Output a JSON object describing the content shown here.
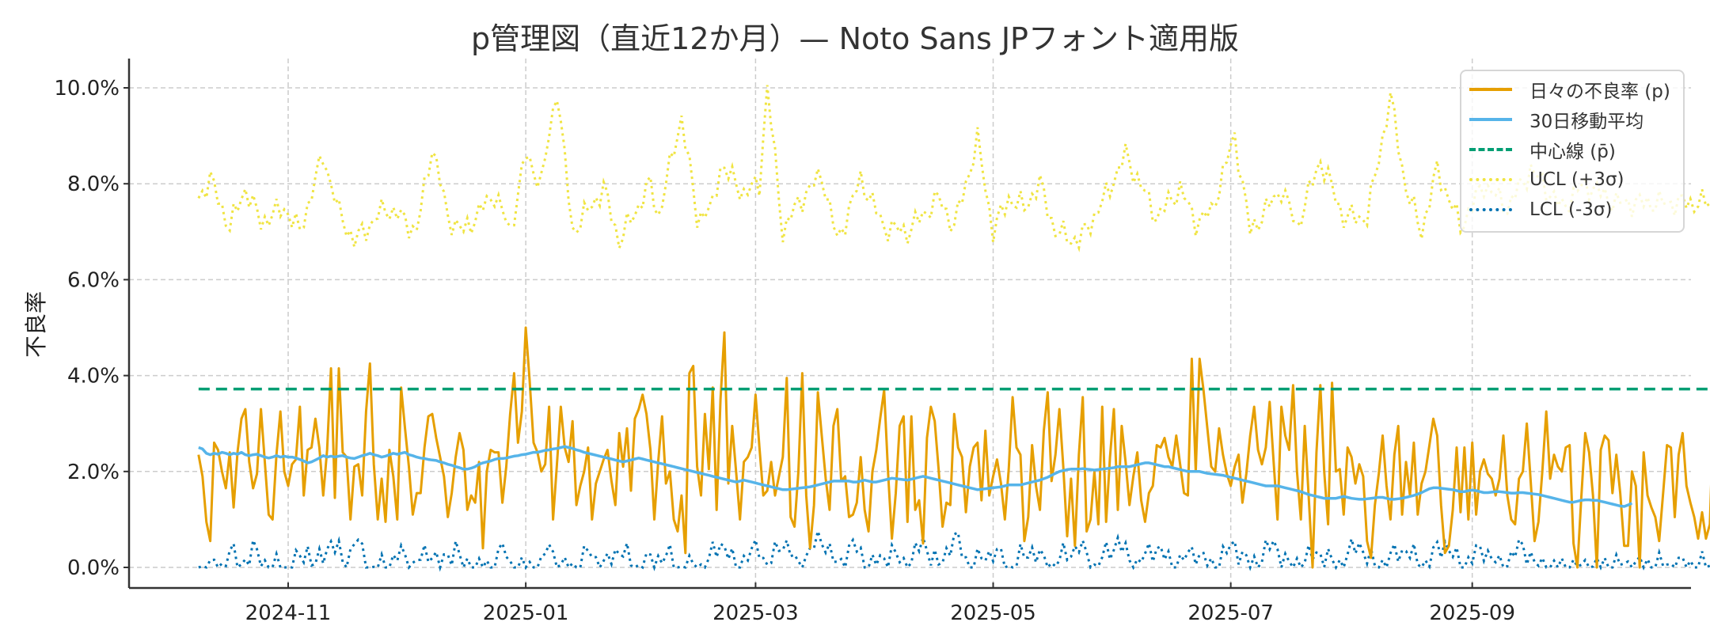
{
  "chart_data": {
    "type": "line",
    "title": "p管理図（直近12か月）— Noto Sans JPフォント適用版",
    "xlabel": "",
    "ylabel": "不良率",
    "x_start": "2024-10-09",
    "x_end": "2025-10-08",
    "x_ticks": [
      "2024-11",
      "2025-01",
      "2025-03",
      "2025-05",
      "2025-07",
      "2025-09"
    ],
    "y_ticks": [
      "0.0%",
      "2.0%",
      "4.0%",
      "6.0%",
      "8.0%",
      "10.0%"
    ],
    "ylim": [
      -0.5,
      10.6
    ],
    "y_unit": "%",
    "grid": true,
    "legend_position": "upper right",
    "center_line": 3.72,
    "series": [
      {
        "name": "日々の不良率 (p)",
        "color": "#E69F00",
        "style": "solid",
        "key": "daily"
      },
      {
        "name": "30日移動平均",
        "color": "#56B4E9",
        "style": "solid",
        "key": "ma30"
      },
      {
        "name": "中心線 (p̄)",
        "color": "#009E73",
        "style": "dashed",
        "key": "center"
      },
      {
        "name": "UCL (+3σ)",
        "color": "#F0E442",
        "style": "dotted",
        "key": "ucl"
      },
      {
        "name": "LCL (-3σ)",
        "color": "#0072B2",
        "style": "dotted",
        "key": "lcl"
      }
    ],
    "daily": [
      2.35,
      1.9,
      0.95,
      0.55,
      2.6,
      2.45,
      2.0,
      1.65,
      2.4,
      1.25,
      2.4,
      3.1,
      3.3,
      2.2,
      1.65,
      1.95,
      3.3,
      2.2,
      1.1,
      1.0,
      2.35,
      3.25,
      2.0,
      1.7,
      2.15,
      2.25,
      3.35,
      1.5,
      2.45,
      2.5,
      3.1,
      2.5,
      1.5,
      2.45,
      4.15,
      1.45,
      4.15,
      2.4,
      2.3,
      1.0,
      2.1,
      2.15,
      1.5,
      3.25,
      4.25,
      2.15,
      1.0,
      1.85,
      0.95,
      2.45,
      1.9,
      1.0,
      3.75,
      2.9,
      2.1,
      1.1,
      1.55,
      1.55,
      2.5,
      3.15,
      3.2,
      2.7,
      2.3,
      1.9,
      1.05,
      1.55,
      2.3,
      2.8,
      2.45,
      1.2,
      1.5,
      1.35,
      2.2,
      0.4,
      2.0,
      2.45,
      2.4,
      2.4,
      1.35,
      2.1,
      3.2,
      4.05,
      2.6,
      3.25,
      5.0,
      3.9,
      2.6,
      2.4,
      2.0,
      2.15,
      3.35,
      1.0,
      2.15,
      3.35,
      2.5,
      2.2,
      3.05,
      1.3,
      1.7,
      2.0,
      2.5,
      1.0,
      1.75,
      2.0,
      2.25,
      2.45,
      1.8,
      1.3,
      2.8,
      2.1,
      2.9,
      1.6,
      3.1,
      3.3,
      3.6,
      3.2,
      2.45,
      1.0,
      2.2,
      3.15,
      1.75,
      2.0,
      1.0,
      0.75,
      1.5,
      0.3,
      4.05,
      4.2,
      2.1,
      1.5,
      3.2,
      2.05,
      3.75,
      1.2,
      3.5,
      4.9,
      1.75,
      2.95,
      2.0,
      1.0,
      2.2,
      2.3,
      2.5,
      3.6,
      2.5,
      1.5,
      1.6,
      2.2,
      1.5,
      1.9,
      2.3,
      3.95,
      1.05,
      0.85,
      2.0,
      4.05,
      1.5,
      0.4,
      1.3,
      3.65,
      2.75,
      1.85,
      1.2,
      2.95,
      3.3,
      1.8,
      1.9,
      1.05,
      1.1,
      1.35,
      2.3,
      1.2,
      0.75,
      2.0,
      2.45,
      3.1,
      3.7,
      2.0,
      0.6,
      1.55,
      2.95,
      3.15,
      0.95,
      3.15,
      1.2,
      1.4,
      0.5,
      2.7,
      3.35,
      3.05,
      2.05,
      0.85,
      1.35,
      1.3,
      3.2,
      2.5,
      2.3,
      1.15,
      2.1,
      2.5,
      2.6,
      1.4,
      2.85,
      1.5,
      1.9,
      2.25,
      1.75,
      1.0,
      2.05,
      3.55,
      2.5,
      2.35,
      0.55,
      1.05,
      2.55,
      1.7,
      1.2,
      2.85,
      3.65,
      1.8,
      2.35,
      3.3,
      2.1,
      0.65,
      1.85,
      0.45,
      2.35,
      3.55,
      0.75,
      1.0,
      2.0,
      0.9,
      3.35,
      0.95,
      2.3,
      3.3,
      1.2,
      2.95,
      2.2,
      1.3,
      1.9,
      2.4,
      1.4,
      0.95,
      1.55,
      1.7,
      2.55,
      2.5,
      2.7,
      2.3,
      2.1,
      2.75,
      2.15,
      1.55,
      1.5,
      4.35,
      2.0,
      4.35,
      3.7,
      2.9,
      2.1,
      2.0,
      2.9,
      2.35,
      1.95,
      1.7,
      2.1,
      2.35,
      1.35,
      1.95,
      2.75,
      3.35,
      2.45,
      2.15,
      2.5,
      3.45,
      2.2,
      1.0,
      3.35,
      2.75,
      2.45,
      3.8,
      2.0,
      1.0,
      2.95,
      1.5,
      0.0,
      2.4,
      3.8,
      2.0,
      0.9,
      3.85,
      2.0,
      2.05,
      1.1,
      2.5,
      2.3,
      1.75,
      2.15,
      1.9,
      0.55,
      0.2,
      1.3,
      1.95,
      2.75,
      1.7,
      1.0,
      2.35,
      2.95,
      1.1,
      2.2,
      1.5,
      2.6,
      1.1,
      1.75,
      2.0,
      2.55,
      3.1,
      2.75,
      1.3,
      0.3,
      0.45,
      1.2,
      2.5,
      1.15,
      2.5,
      1.0,
      2.6,
      1.1,
      2.0,
      2.25,
      1.95,
      1.85,
      1.5,
      1.85,
      2.75,
      1.5,
      1.0,
      0.9,
      1.85,
      2.0,
      3.0,
      1.8,
      0.55,
      0.95,
      2.0,
      3.25,
      1.85,
      2.35,
      2.1,
      2.0,
      2.5,
      2.55,
      0.5,
      0.0,
      1.45,
      2.8,
      2.4,
      1.5,
      0.0,
      2.45,
      2.75,
      2.65,
      1.55,
      2.35,
      1.55,
      0.45,
      0.45,
      2.0,
      1.7,
      0.0,
      2.4,
      1.5,
      1.25,
      1.05,
      0.55,
      1.55,
      2.55,
      2.5,
      1.05,
      2.35,
      2.8,
      1.7,
      1.35,
      1.05,
      0.6,
      1.15,
      0.6,
      0.9,
      3.3
    ],
    "ma30": [
      2.5,
      2.47,
      2.38,
      2.35,
      2.38,
      2.36,
      2.4,
      2.38,
      2.35,
      2.38,
      2.36,
      2.4,
      2.35,
      2.33,
      2.35,
      2.36,
      2.33,
      2.3,
      2.28,
      2.3,
      2.33,
      2.3,
      2.32,
      2.3,
      2.3,
      2.28,
      2.25,
      2.22,
      2.18,
      2.2,
      2.24,
      2.28,
      2.33,
      2.3,
      2.32,
      2.3,
      2.32,
      2.33,
      2.3,
      2.28,
      2.27,
      2.3,
      2.33,
      2.35,
      2.38,
      2.35,
      2.33,
      2.3,
      2.32,
      2.35,
      2.38,
      2.36,
      2.38,
      2.4,
      2.35,
      2.33,
      2.3,
      2.28,
      2.27,
      2.25,
      2.24,
      2.23,
      2.2,
      2.18,
      2.15,
      2.13,
      2.1,
      2.08,
      2.05,
      2.05,
      2.07,
      2.1,
      2.15,
      2.18,
      2.2,
      2.22,
      2.25,
      2.27,
      2.27,
      2.28,
      2.3,
      2.32,
      2.33,
      2.35,
      2.36,
      2.38,
      2.4,
      2.4,
      2.42,
      2.44,
      2.45,
      2.47,
      2.48,
      2.5,
      2.52,
      2.5,
      2.48,
      2.45,
      2.43,
      2.4,
      2.38,
      2.36,
      2.34,
      2.32,
      2.3,
      2.28,
      2.26,
      2.24,
      2.22,
      2.2,
      2.22,
      2.24,
      2.26,
      2.28,
      2.26,
      2.24,
      2.22,
      2.2,
      2.18,
      2.16,
      2.14,
      2.12,
      2.1,
      2.08,
      2.06,
      2.04,
      2.02,
      2.0,
      1.98,
      1.96,
      1.94,
      1.92,
      1.9,
      1.88,
      1.86,
      1.84,
      1.82,
      1.8,
      1.78,
      1.8,
      1.82,
      1.8,
      1.78,
      1.76,
      1.74,
      1.72,
      1.7,
      1.68,
      1.66,
      1.64,
      1.62,
      1.62,
      1.63,
      1.64,
      1.65,
      1.66,
      1.67,
      1.68,
      1.7,
      1.72,
      1.74,
      1.76,
      1.78,
      1.8,
      1.8,
      1.8,
      1.8,
      1.8,
      1.78,
      1.78,
      1.8,
      1.82,
      1.8,
      1.78,
      1.78,
      1.8,
      1.82,
      1.84,
      1.86,
      1.85,
      1.84,
      1.83,
      1.82,
      1.84,
      1.86,
      1.88,
      1.9,
      1.88,
      1.86,
      1.84,
      1.82,
      1.8,
      1.78,
      1.76,
      1.74,
      1.72,
      1.7,
      1.68,
      1.66,
      1.64,
      1.62,
      1.63,
      1.64,
      1.65,
      1.66,
      1.67,
      1.68,
      1.7,
      1.72,
      1.72,
      1.72,
      1.72,
      1.74,
      1.76,
      1.78,
      1.8,
      1.82,
      1.85,
      1.88,
      1.92,
      1.96,
      2.0,
      2.02,
      2.04,
      2.05,
      2.05,
      2.05,
      2.06,
      2.05,
      2.04,
      2.03,
      2.04,
      2.05,
      2.06,
      2.07,
      2.08,
      2.1,
      2.1,
      2.1,
      2.1,
      2.12,
      2.14,
      2.16,
      2.18,
      2.18,
      2.16,
      2.14,
      2.12,
      2.1,
      2.1,
      2.08,
      2.06,
      2.04,
      2.02,
      2.0,
      2.0,
      2.0,
      2.0,
      1.98,
      1.96,
      1.95,
      1.94,
      1.93,
      1.92,
      1.9,
      1.88,
      1.86,
      1.84,
      1.82,
      1.8,
      1.78,
      1.76,
      1.74,
      1.72,
      1.7,
      1.7,
      1.7,
      1.7,
      1.68,
      1.66,
      1.64,
      1.62,
      1.6,
      1.58,
      1.55,
      1.52,
      1.5,
      1.48,
      1.46,
      1.44,
      1.44,
      1.44,
      1.44,
      1.46,
      1.48,
      1.46,
      1.44,
      1.43,
      1.42,
      1.42,
      1.43,
      1.44,
      1.45,
      1.46,
      1.46,
      1.44,
      1.42,
      1.42,
      1.43,
      1.44,
      1.46,
      1.48,
      1.5,
      1.53,
      1.56,
      1.6,
      1.64,
      1.66,
      1.66,
      1.65,
      1.64,
      1.63,
      1.62,
      1.6,
      1.58,
      1.58,
      1.6,
      1.61,
      1.6,
      1.58,
      1.56,
      1.56,
      1.57,
      1.58,
      1.58,
      1.57,
      1.56,
      1.55,
      1.55,
      1.56,
      1.56,
      1.55,
      1.54,
      1.53,
      1.52,
      1.5,
      1.48,
      1.46,
      1.44,
      1.42,
      1.4,
      1.38,
      1.36,
      1.36,
      1.38,
      1.4,
      1.41,
      1.41,
      1.4,
      1.4,
      1.38,
      1.36,
      1.34,
      1.32,
      1.3,
      1.28,
      1.27,
      1.3,
      1.34
    ],
    "ucl_profile": [
      [
        0,
        7.7
      ],
      [
        3,
        8.1
      ],
      [
        8,
        7.1
      ],
      [
        12,
        7.9
      ],
      [
        16,
        7.2
      ],
      [
        22,
        7.5
      ],
      [
        26,
        7.0
      ],
      [
        32,
        8.6
      ],
      [
        36,
        7.4
      ],
      [
        40,
        6.8
      ],
      [
        48,
        7.5
      ],
      [
        52,
        7.3
      ],
      [
        56,
        7.0
      ],
      [
        60,
        8.8
      ],
      [
        64,
        7.3
      ],
      [
        68,
        7.0
      ],
      [
        76,
        7.8
      ],
      [
        80,
        7.0
      ],
      [
        84,
        8.6
      ],
      [
        88,
        8.0
      ],
      [
        92,
        10.0
      ],
      [
        96,
        7.0
      ],
      [
        104,
        7.9
      ],
      [
        108,
        6.8
      ],
      [
        116,
        8.0
      ],
      [
        118,
        7.3
      ],
      [
        124,
        9.4
      ],
      [
        128,
        7.3
      ],
      [
        132,
        7.5
      ],
      [
        134,
        8.4
      ],
      [
        140,
        7.8
      ],
      [
        144,
        8.0
      ],
      [
        146,
        10.0
      ],
      [
        150,
        7.0
      ],
      [
        154,
        7.6
      ],
      [
        160,
        8.2
      ],
      [
        164,
        6.8
      ],
      [
        170,
        8.1
      ],
      [
        176,
        7.1
      ],
      [
        182,
        7.0
      ],
      [
        190,
        7.7
      ],
      [
        194,
        7.1
      ],
      [
        200,
        8.9
      ],
      [
        204,
        7.0
      ],
      [
        208,
        7.7
      ],
      [
        212,
        7.5
      ],
      [
        216,
        8.0
      ],
      [
        220,
        7.0
      ],
      [
        226,
        6.8
      ],
      [
        232,
        7.6
      ],
      [
        238,
        8.6
      ],
      [
        246,
        7.3
      ],
      [
        252,
        7.9
      ],
      [
        256,
        7.2
      ],
      [
        260,
        7.4
      ],
      [
        266,
        9.0
      ],
      [
        270,
        7.0
      ],
      [
        278,
        7.9
      ],
      [
        282,
        7.1
      ],
      [
        288,
        8.5
      ],
      [
        294,
        7.3
      ],
      [
        300,
        7.3
      ],
      [
        306,
        9.8
      ],
      [
        310,
        7.9
      ],
      [
        314,
        7.0
      ],
      [
        318,
        8.3
      ],
      [
        324,
        7.1
      ],
      [
        330,
        8.0
      ],
      [
        336,
        7.5
      ],
      [
        342,
        8.3
      ],
      [
        350,
        7.5
      ],
      [
        356,
        8.0
      ],
      [
        364,
        7.6
      ]
    ],
    "lcl_profile": [
      [
        0,
        0.0
      ],
      [
        6,
        0.0
      ],
      [
        8,
        0.42
      ],
      [
        10,
        0.0
      ],
      [
        14,
        0.35
      ],
      [
        18,
        0.0
      ],
      [
        24,
        0.0
      ],
      [
        28,
        0.38
      ],
      [
        30,
        0.0
      ],
      [
        34,
        0.55
      ],
      [
        38,
        0.0
      ],
      [
        40,
        0.6
      ],
      [
        44,
        0.0
      ],
      [
        48,
        0.0
      ],
      [
        52,
        0.3
      ],
      [
        54,
        0.0
      ],
      [
        60,
        0.35
      ],
      [
        62,
        0.0
      ],
      [
        66,
        0.45
      ],
      [
        68,
        0.0
      ],
      [
        76,
        0.0
      ],
      [
        78,
        0.45
      ],
      [
        80,
        0.0
      ],
      [
        88,
        0.0
      ],
      [
        90,
        0.5
      ],
      [
        92,
        0.0
      ],
      [
        98,
        0.0
      ],
      [
        100,
        0.35
      ],
      [
        104,
        0.0
      ],
      [
        108,
        0.42
      ],
      [
        112,
        0.0
      ],
      [
        120,
        0.25
      ],
      [
        124,
        0.0
      ],
      [
        130,
        0.0
      ],
      [
        134,
        0.55
      ],
      [
        138,
        0.0
      ],
      [
        144,
        0.45
      ],
      [
        146,
        0.0
      ],
      [
        150,
        0.58
      ],
      [
        154,
        0.0
      ],
      [
        160,
        0.65
      ],
      [
        164,
        0.0
      ],
      [
        168,
        0.48
      ],
      [
        172,
        0.0
      ],
      [
        178,
        0.3
      ],
      [
        182,
        0.0
      ],
      [
        186,
        0.55
      ],
      [
        190,
        0.0
      ],
      [
        194,
        0.65
      ],
      [
        198,
        0.0
      ],
      [
        204,
        0.35
      ],
      [
        208,
        0.0
      ],
      [
        214,
        0.38
      ],
      [
        218,
        0.0
      ],
      [
        226,
        0.45
      ],
      [
        230,
        0.0
      ],
      [
        236,
        0.55
      ],
      [
        240,
        0.0
      ],
      [
        246,
        0.45
      ],
      [
        250,
        0.0
      ],
      [
        256,
        0.35
      ],
      [
        260,
        0.0
      ],
      [
        266,
        0.48
      ],
      [
        270,
        0.0
      ],
      [
        276,
        0.5
      ],
      [
        280,
        0.0
      ],
      [
        288,
        0.32
      ],
      [
        292,
        0.0
      ],
      [
        298,
        0.5
      ],
      [
        302,
        0.0
      ],
      [
        310,
        0.4
      ],
      [
        314,
        0.0
      ],
      [
        320,
        0.52
      ],
      [
        324,
        0.0
      ],
      [
        330,
        0.4
      ],
      [
        334,
        0.0
      ],
      [
        340,
        0.45
      ],
      [
        344,
        0.0
      ],
      [
        352,
        0.0
      ],
      [
        364,
        0.05
      ]
    ]
  },
  "legend": {
    "items": [
      {
        "label": "日々の不良率 (p)"
      },
      {
        "label": "30日移動平均"
      },
      {
        "label": "中心線 (p̄)"
      },
      {
        "label": "UCL (+3σ)"
      },
      {
        "label": "LCL (-3σ)"
      }
    ]
  }
}
